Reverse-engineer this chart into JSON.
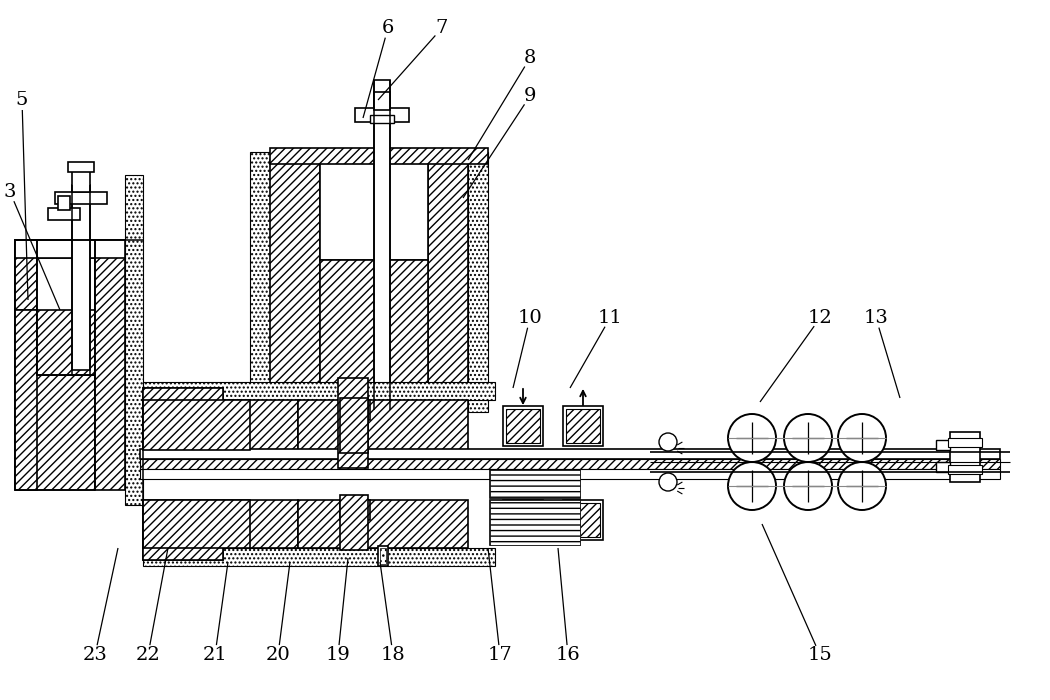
{
  "bg_color": "#ffffff",
  "lc": "#000000",
  "figsize": [
    10.5,
    7.0
  ],
  "dpi": 100,
  "leader_lines": [
    [
      "5",
      22,
      100,
      28,
      300
    ],
    [
      "3",
      10,
      192,
      60,
      310
    ],
    [
      "6",
      388,
      28,
      363,
      118
    ],
    [
      "7",
      442,
      28,
      378,
      100
    ],
    [
      "8",
      530,
      58,
      468,
      160
    ],
    [
      "9",
      530,
      96,
      463,
      198
    ],
    [
      "10",
      530,
      318,
      513,
      388
    ],
    [
      "11",
      610,
      318,
      570,
      388
    ],
    [
      "12",
      820,
      318,
      760,
      402
    ],
    [
      "13",
      876,
      318,
      900,
      398
    ],
    [
      "23",
      95,
      655,
      118,
      548
    ],
    [
      "22",
      148,
      655,
      168,
      548
    ],
    [
      "21",
      215,
      655,
      228,
      562
    ],
    [
      "20",
      278,
      655,
      290,
      562
    ],
    [
      "19",
      338,
      655,
      348,
      558
    ],
    [
      "18",
      393,
      655,
      380,
      562
    ],
    [
      "17",
      500,
      655,
      488,
      548
    ],
    [
      "16",
      568,
      655,
      558,
      548
    ],
    [
      "15",
      820,
      655,
      762,
      524
    ]
  ]
}
